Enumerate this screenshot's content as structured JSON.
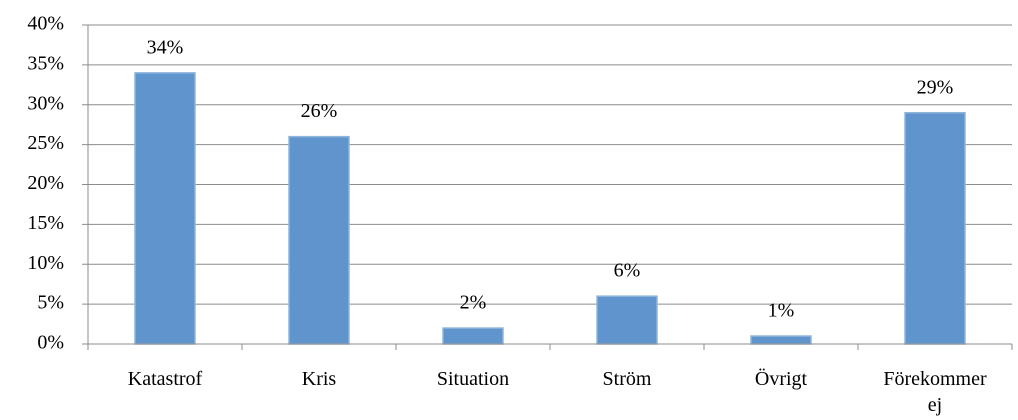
{
  "chart_data": {
    "type": "bar",
    "categories": [
      "Katastrof",
      "Kris",
      "Situation",
      "Ström",
      "Övrigt",
      "Förekommer ej"
    ],
    "values": [
      34,
      26,
      2,
      6,
      1,
      29
    ],
    "value_labels": [
      "34%",
      "26%",
      "2%",
      "6%",
      "1%",
      "29%"
    ],
    "color": "#5f95cc",
    "ylim": [
      0,
      40
    ],
    "yticks": [
      {
        "value": 0,
        "label": "0%"
      },
      {
        "value": 5,
        "label": "5%"
      },
      {
        "value": 10,
        "label": "10%"
      },
      {
        "value": 15,
        "label": "15%"
      },
      {
        "value": 20,
        "label": "20%"
      },
      {
        "value": 25,
        "label": "25%"
      },
      {
        "value": 30,
        "label": "30%"
      },
      {
        "value": 35,
        "label": "35%"
      },
      {
        "value": 40,
        "label": "40%"
      }
    ],
    "grid": true
  }
}
